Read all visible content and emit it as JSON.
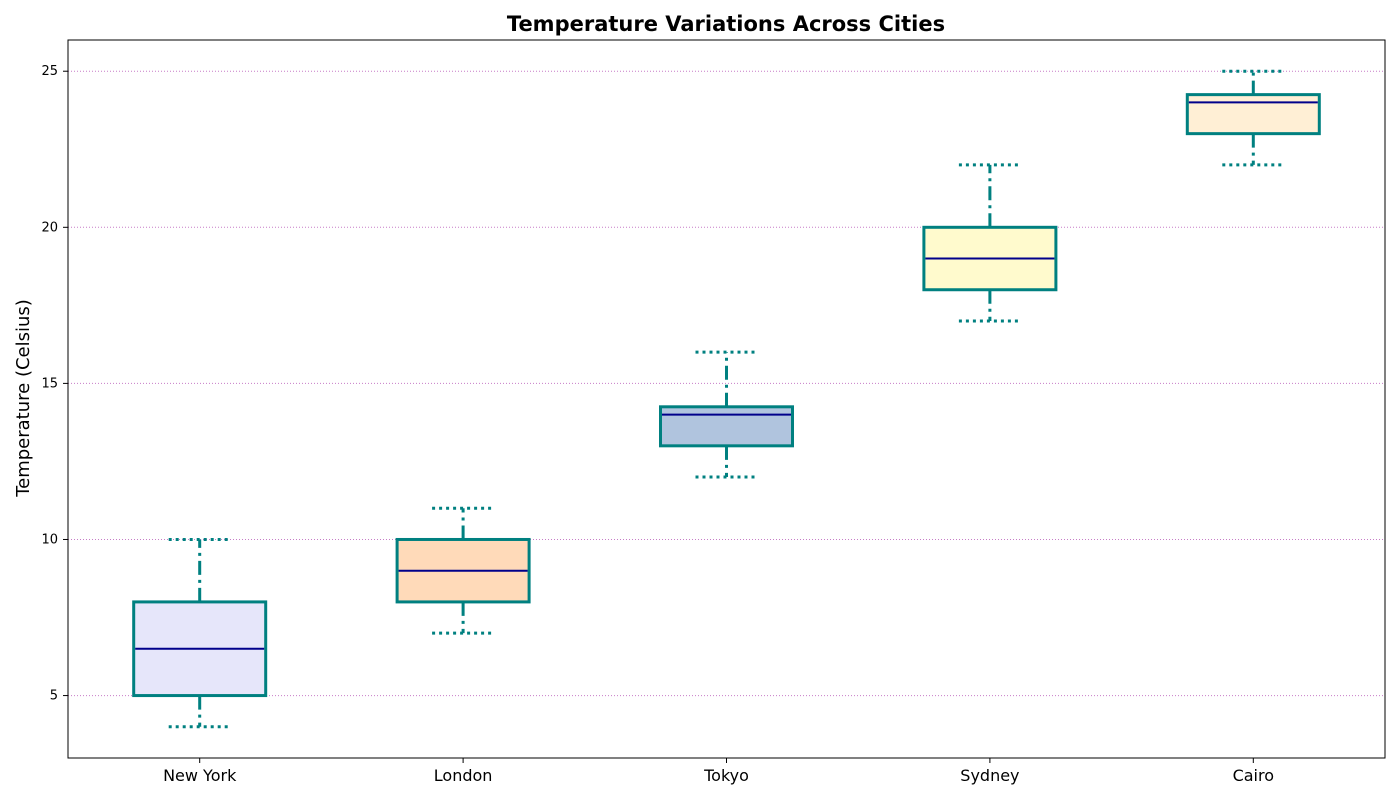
{
  "chart_data": {
    "type": "box",
    "title": "Temperature Variations Across Cities",
    "xlabel": "",
    "ylabel": "Temperature (Celsius)",
    "ylim": [
      3,
      26
    ],
    "yticks": [
      5,
      10,
      15,
      20,
      25
    ],
    "grid": {
      "y": true,
      "x": false,
      "style": "dotted",
      "color": "#c77cc7"
    },
    "categories": [
      "New York",
      "London",
      "Tokyo",
      "Sydney",
      "Cairo"
    ],
    "boxes": [
      {
        "name": "New York",
        "min": 4,
        "q1": 5,
        "median": 6.5,
        "q3": 8,
        "max": 10,
        "fill": "#e6e6fa"
      },
      {
        "name": "London",
        "min": 7,
        "q1": 8,
        "median": 9,
        "q3": 10,
        "max": 11,
        "fill": "#ffdab9"
      },
      {
        "name": "Tokyo",
        "min": 12,
        "q1": 13,
        "median": 14,
        "q3": 14.25,
        "max": 16,
        "fill": "#b0c4de"
      },
      {
        "name": "Sydney",
        "min": 17,
        "q1": 18,
        "median": 19,
        "q3": 20,
        "max": 22,
        "fill": "#fffacd"
      },
      {
        "name": "Cairo",
        "min": 22,
        "q1": 23,
        "median": 24,
        "q3": 24.25,
        "max": 25,
        "fill": "#ffefd5"
      }
    ],
    "colors": {
      "box_edge": "#008080",
      "median": "#00008b",
      "whisker": "#008080",
      "cap": "#008080",
      "axes": "#000000"
    }
  }
}
